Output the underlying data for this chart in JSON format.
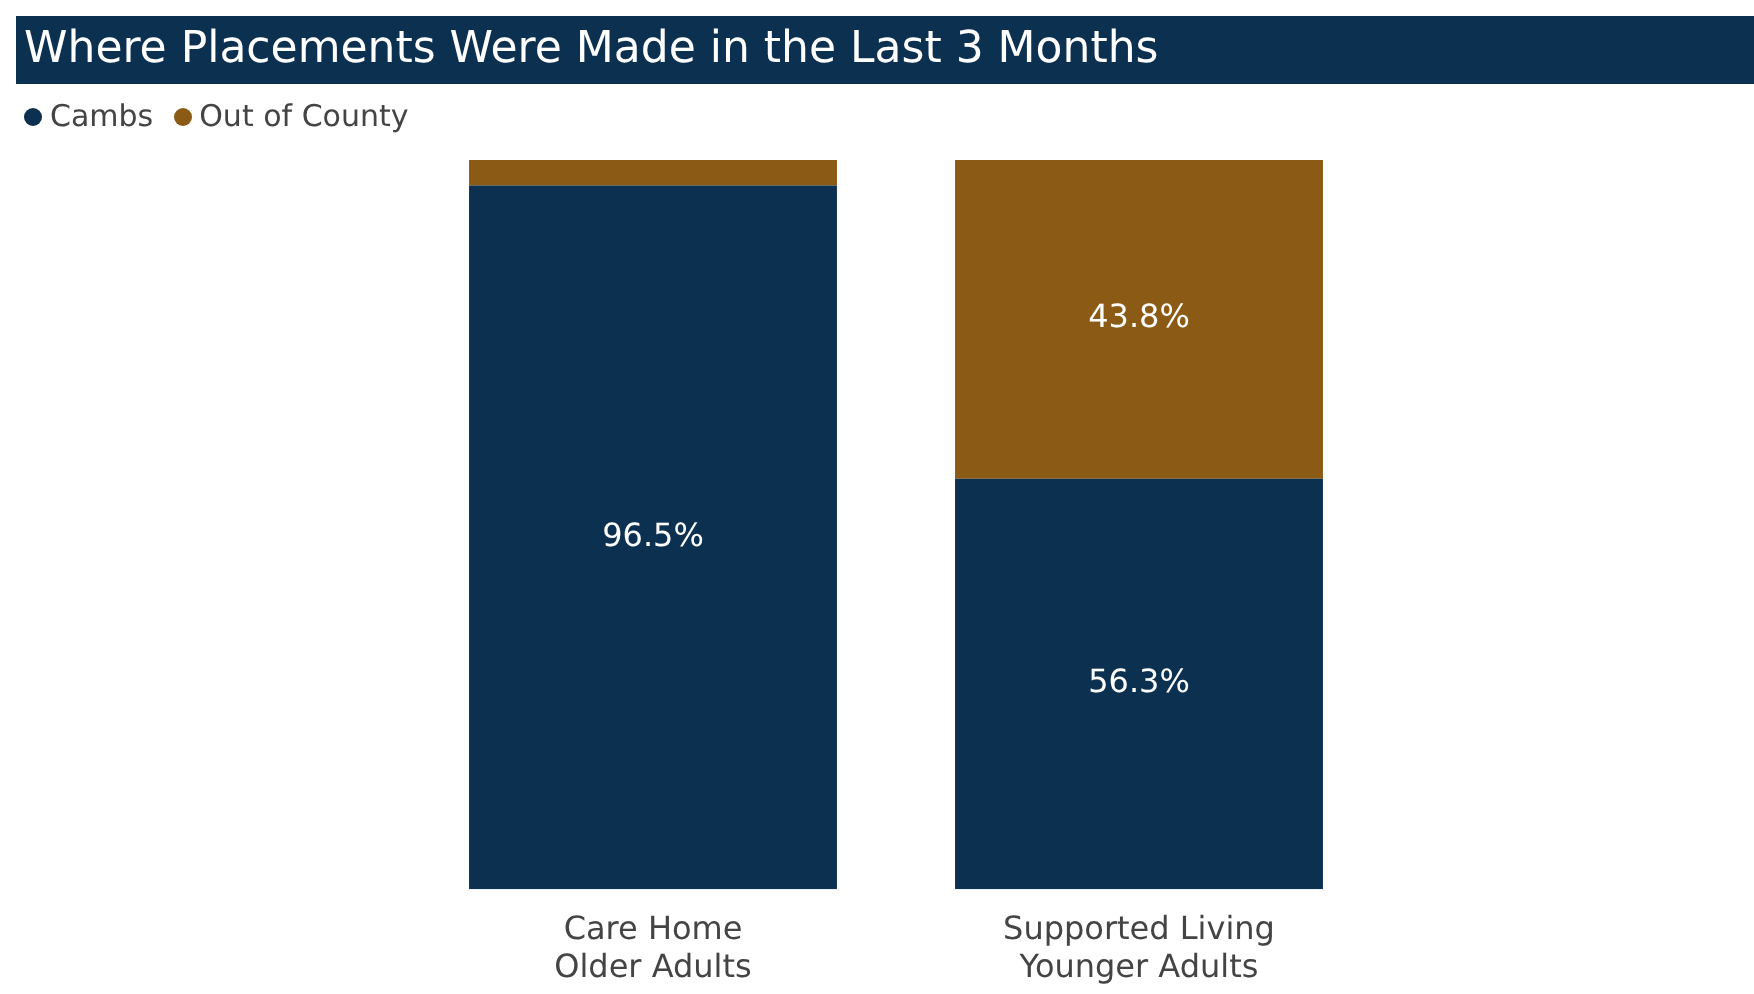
{
  "chart_data": {
    "type": "bar",
    "title": "Where Placements Were Made in the Last 3 Months",
    "categories": [
      "Care Home Older Adults",
      "Supported Living Younger Adults"
    ],
    "stacked": true,
    "ylim": [
      0,
      100
    ],
    "tick_labels": "x",
    "legend": "top left",
    "series": [
      {
        "name": "Cambs",
        "color": "#0c3050",
        "values": [
          96.5,
          56.3
        ],
        "value_labels": [
          "96.5%",
          "56.3%"
        ]
      },
      {
        "name": "Out of County",
        "color": "#8b5a14",
        "values": [
          3.5,
          43.8
        ],
        "value_labels": [
          null,
          "43.8%"
        ]
      }
    ]
  }
}
